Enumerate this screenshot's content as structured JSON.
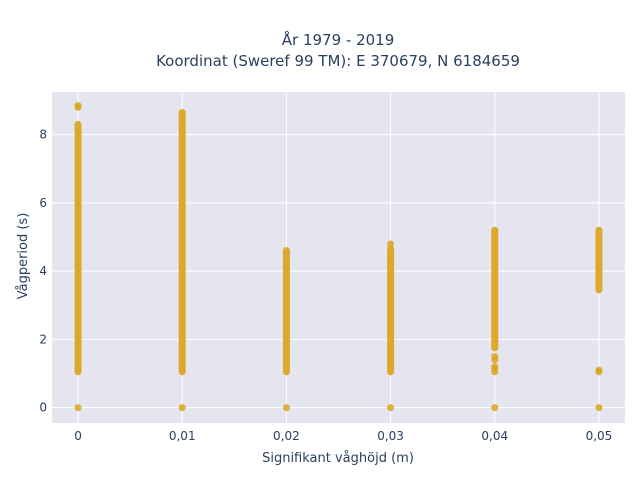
{
  "chart_data": {
    "type": "scatter",
    "title_lines": [
      "År 1979 - 2019",
      "Koordinat (Sweref 99 TM): E 370679, N 6184659"
    ],
    "xlabel": "Signifikant våghöjd (m)",
    "ylabel": "Vågperiod (s)",
    "x_ticks": [
      {
        "value": 0,
        "label": "0"
      },
      {
        "value": 0.01,
        "label": "0,01"
      },
      {
        "value": 0.02,
        "label": "0,02"
      },
      {
        "value": 0.03,
        "label": "0,03"
      },
      {
        "value": 0.04,
        "label": "0,04"
      },
      {
        "value": 0.05,
        "label": "0,05"
      }
    ],
    "y_ticks": [
      {
        "value": 0,
        "label": "0"
      },
      {
        "value": 2,
        "label": "2"
      },
      {
        "value": 4,
        "label": "4"
      },
      {
        "value": 6,
        "label": "6"
      },
      {
        "value": 8,
        "label": "8"
      }
    ],
    "xlim": [
      -0.0025,
      0.0525
    ],
    "ylim": [
      -0.45,
      9.25
    ],
    "grid": true,
    "colors": {
      "marker": "#DAA520",
      "plot_bg": "#E5E5F0",
      "grid": "#ffffff",
      "text": "#2a3f5f"
    },
    "series": [
      {
        "ranges": [
          {
            "x": 0,
            "from": 1.05,
            "to": 8.3
          },
          {
            "x": 0.01,
            "from": 1.05,
            "to": 8.65
          },
          {
            "x": 0.02,
            "from": 1.05,
            "to": 4.6
          },
          {
            "x": 0.03,
            "from": 1.05,
            "to": 4.65
          },
          {
            "x": 0.04,
            "from": 1.75,
            "to": 5.2
          },
          {
            "x": 0.05,
            "from": 3.45,
            "to": 5.2
          }
        ],
        "points": [
          {
            "x": 0,
            "y": 0
          },
          {
            "x": 0,
            "y": 8.8
          },
          {
            "x": 0,
            "y": 8.85
          },
          {
            "x": 0.01,
            "y": 0
          },
          {
            "x": 0.02,
            "y": 0
          },
          {
            "x": 0.03,
            "y": 0
          },
          {
            "x": 0.03,
            "y": 4.8
          },
          {
            "x": 0.04,
            "y": 0
          },
          {
            "x": 0.04,
            "y": 1.05
          },
          {
            "x": 0.04,
            "y": 1.15
          },
          {
            "x": 0.04,
            "y": 1.2
          },
          {
            "x": 0.04,
            "y": 1.4
          },
          {
            "x": 0.04,
            "y": 1.5
          },
          {
            "x": 0.05,
            "y": 0
          },
          {
            "x": 0.05,
            "y": 1.05
          },
          {
            "x": 0.05,
            "y": 1.1
          }
        ]
      }
    ]
  }
}
